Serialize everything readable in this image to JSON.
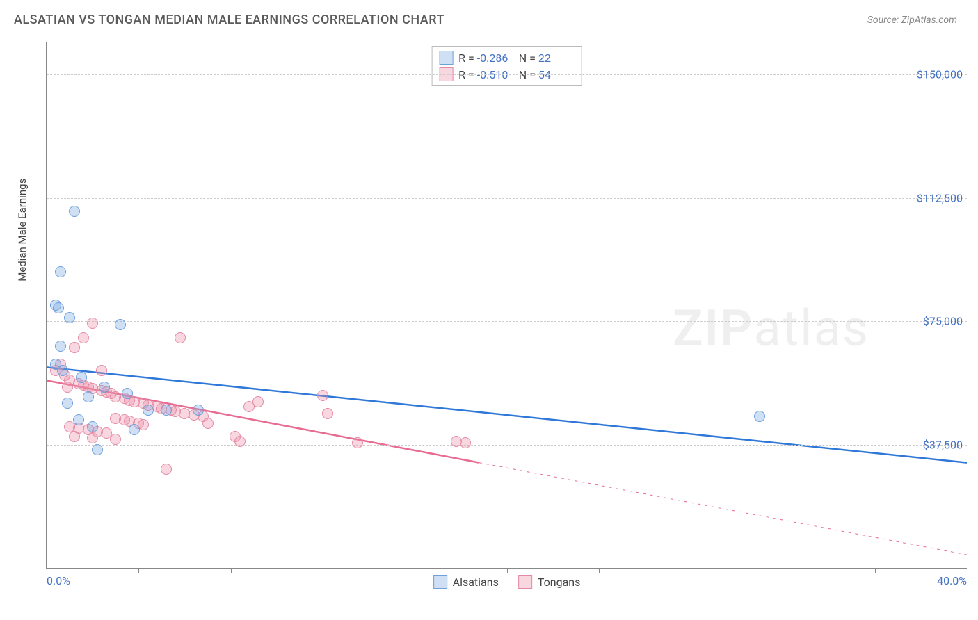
{
  "header": {
    "title": "ALSATIAN VS TONGAN MEDIAN MALE EARNINGS CORRELATION CHART",
    "source": "Source: ZipAtlas.com"
  },
  "watermark": {
    "zip": "ZIP",
    "atlas": "atlas"
  },
  "chart": {
    "type": "scatter",
    "background_color": "#ffffff",
    "grid_color": "#cccccc",
    "axis_color": "#888888",
    "ylabel": "Median Male Earnings",
    "label_fontsize": 15,
    "tick_fontsize": 16,
    "tick_label_color": "#4472c4",
    "xlim": [
      0,
      40
    ],
    "ylim": [
      0,
      160000
    ],
    "yticks": [
      {
        "v": 37500,
        "label": "$37,500"
      },
      {
        "v": 75000,
        "label": "$75,000"
      },
      {
        "v": 112500,
        "label": "$112,500"
      },
      {
        "v": 150000,
        "label": "$150,000"
      }
    ],
    "xticks_minor": [
      4,
      8,
      12,
      16,
      20,
      24,
      28,
      32,
      36
    ],
    "xticks_labeled": [
      {
        "v": 0,
        "label": "0.0%"
      },
      {
        "v": 40,
        "label": "40.0%"
      }
    ],
    "marker_radius": 8,
    "marker_border_width": 1.5,
    "series": {
      "alsatians": {
        "label": "Alsatians",
        "fill": "rgba(120,167,224,0.35)",
        "stroke": "#6ea0dc",
        "line_color": "#2f78d7",
        "line_width": 2.5,
        "r_value": "-0.286",
        "n_value": "22",
        "regression": {
          "solid": [
            [
              0,
              61000
            ],
            [
              40,
              32000
            ]
          ]
        },
        "points": [
          [
            1.2,
            108500
          ],
          [
            0.6,
            90000
          ],
          [
            0.4,
            80000
          ],
          [
            0.5,
            79000
          ],
          [
            1.0,
            76000
          ],
          [
            3.2,
            74000
          ],
          [
            0.6,
            67500
          ],
          [
            0.4,
            62000
          ],
          [
            0.7,
            60000
          ],
          [
            1.5,
            58000
          ],
          [
            2.5,
            55000
          ],
          [
            3.5,
            53000
          ],
          [
            4.4,
            48000
          ],
          [
            5.2,
            48000
          ],
          [
            6.6,
            48000
          ],
          [
            31.0,
            46000
          ],
          [
            1.4,
            45000
          ],
          [
            2.0,
            43000
          ],
          [
            3.8,
            42000
          ],
          [
            2.2,
            36000
          ],
          [
            1.8,
            52000
          ],
          [
            0.9,
            50000
          ]
        ]
      },
      "tongans": {
        "label": "Tongans",
        "fill": "rgba(235,140,165,0.35)",
        "stroke": "#e58aa5",
        "line_color": "#e86b92",
        "line_width": 2.5,
        "r_value": "-0.510",
        "n_value": "54",
        "regression": {
          "solid": [
            [
              0,
              57000
            ],
            [
              18.8,
              32000
            ]
          ],
          "dashed": [
            [
              18.8,
              32000
            ],
            [
              40,
              4000
            ]
          ]
        },
        "points": [
          [
            2.0,
            74500
          ],
          [
            1.6,
            70000
          ],
          [
            1.2,
            67000
          ],
          [
            5.8,
            70000
          ],
          [
            0.6,
            62000
          ],
          [
            0.4,
            60000
          ],
          [
            0.8,
            58500
          ],
          [
            1.0,
            57000
          ],
          [
            1.4,
            56000
          ],
          [
            1.6,
            55500
          ],
          [
            1.8,
            55000
          ],
          [
            2.0,
            54500
          ],
          [
            2.4,
            54000
          ],
          [
            2.6,
            53500
          ],
          [
            2.8,
            53000
          ],
          [
            3.0,
            52000
          ],
          [
            3.4,
            51500
          ],
          [
            3.6,
            51000
          ],
          [
            3.8,
            50500
          ],
          [
            4.2,
            50000
          ],
          [
            4.4,
            49500
          ],
          [
            4.8,
            49000
          ],
          [
            5.0,
            48500
          ],
          [
            5.4,
            48000
          ],
          [
            5.6,
            47500
          ],
          [
            6.0,
            47000
          ],
          [
            6.4,
            46500
          ],
          [
            6.8,
            46000
          ],
          [
            3.0,
            45500
          ],
          [
            3.4,
            45000
          ],
          [
            3.6,
            44500
          ],
          [
            4.0,
            44000
          ],
          [
            4.2,
            43500
          ],
          [
            1.0,
            43000
          ],
          [
            1.4,
            42500
          ],
          [
            1.8,
            42000
          ],
          [
            2.2,
            41500
          ],
          [
            2.6,
            41000
          ],
          [
            1.2,
            40000
          ],
          [
            2.0,
            39500
          ],
          [
            3.0,
            39000
          ],
          [
            7.0,
            44000
          ],
          [
            8.2,
            40000
          ],
          [
            8.4,
            38500
          ],
          [
            8.8,
            49000
          ],
          [
            9.2,
            50500
          ],
          [
            12.0,
            52500
          ],
          [
            12.2,
            47000
          ],
          [
            13.5,
            38000
          ],
          [
            17.8,
            38500
          ],
          [
            18.2,
            38000
          ],
          [
            5.2,
            30000
          ],
          [
            2.4,
            60000
          ],
          [
            0.9,
            55000
          ]
        ]
      }
    },
    "legend_top": {
      "r_label": "R =",
      "n_label": "N ="
    }
  }
}
